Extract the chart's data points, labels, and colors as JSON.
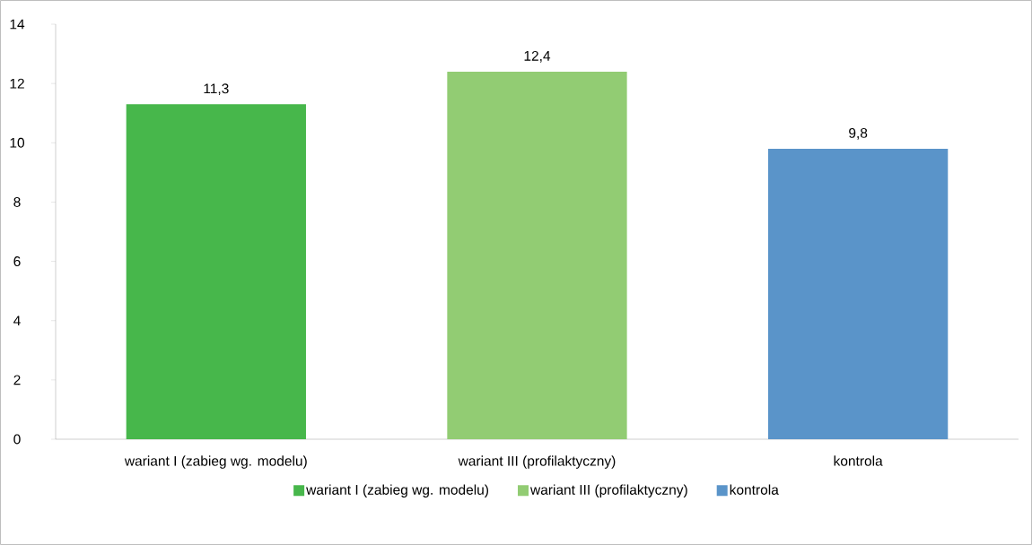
{
  "chart_data": {
    "type": "bar",
    "categories": [
      "wariant I (zabieg wg. modelu)",
      "wariant III (profilaktyczny)",
      "kontrola"
    ],
    "series": [
      {
        "name": "wariant I (zabieg wg. modelu)",
        "color": "#47b74b",
        "values": [
          11.3,
          null,
          null
        ],
        "value_labels": [
          "11,3",
          null,
          null
        ]
      },
      {
        "name": "wariant III (profilaktyczny)",
        "color": "#92cc73",
        "values": [
          null,
          12.4,
          null
        ],
        "value_labels": [
          null,
          "12,4",
          null
        ]
      },
      {
        "name": "kontrola",
        "color": "#5a94c9",
        "values": [
          null,
          null,
          9.8
        ],
        "value_labels": [
          null,
          null,
          "9,8"
        ]
      }
    ],
    "ylim": [
      0,
      14
    ],
    "yticks": [
      0,
      2,
      4,
      6,
      8,
      10,
      12,
      14
    ],
    "grid": false,
    "legend": "bottom"
  }
}
